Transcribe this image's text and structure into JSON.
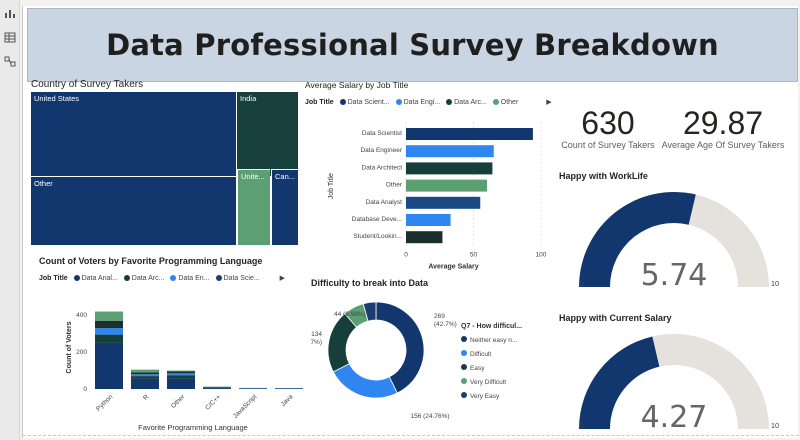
{
  "dashboard_title": "Data Professional Survey Breakdown",
  "colors": {
    "dark_blue": "#12376e",
    "teal_dark": "#163e3b",
    "green": "#5c9f72",
    "blue": "#2f86f0",
    "navy": "#1a3d73",
    "dark": "#1a2e2b",
    "gauge_bg": "#e5e1dc"
  },
  "treemap": {
    "title": "Country of Survey Takers",
    "cells": [
      {
        "label": "United States",
        "color": "#12376e"
      },
      {
        "label": "India",
        "color": "#173f3c"
      },
      {
        "label": "Other",
        "color": "#12376e"
      },
      {
        "label": "Unite...",
        "color": "#5c9f72"
      },
      {
        "label": "Can...",
        "color": "#12376e"
      }
    ]
  },
  "kpis": {
    "survey_takers": {
      "value": "630",
      "label": "Count of Survey Takers"
    },
    "avg_age": {
      "value": "29.87",
      "label": "Average Age Of Survey Takers"
    }
  },
  "gauges": [
    {
      "title": "Happy with WorkLife",
      "value_text": "5.74",
      "min_label": "0",
      "max_label": "10"
    },
    {
      "title": "Happy with Current Salary",
      "value_text": "4.27",
      "min_label": "0",
      "max_label": "10"
    }
  ],
  "legends": {
    "salary_chart": {
      "label": "Job Title",
      "items": [
        {
          "name": "Data Scient...",
          "color": "#12376e"
        },
        {
          "name": "Data Engi...",
          "color": "#2f86f0"
        },
        {
          "name": "Data Arc...",
          "color": "#163e3b"
        },
        {
          "name": "Other",
          "color": "#5c9f72"
        }
      ],
      "more": "▶"
    },
    "lang_chart": {
      "label": "Job Title",
      "items": [
        {
          "name": "Data Anal...",
          "color": "#12376e"
        },
        {
          "name": "Data Arc...",
          "color": "#163e3b"
        },
        {
          "name": "Data En...",
          "color": "#2f86f0"
        },
        {
          "name": "Data Scie...",
          "color": "#1a3d73"
        }
      ],
      "more": "▶"
    }
  },
  "chart_data": [
    {
      "type": "bar",
      "orientation": "horizontal",
      "title": "Average Salary by Job Title",
      "categories": [
        "Data Scientist",
        "Data Engineer",
        "Data Architect",
        "Other",
        "Data Analyst",
        "Database Deve...",
        "Student/Lookin..."
      ],
      "values": [
        94,
        65,
        64,
        60,
        55,
        33,
        27
      ],
      "colors": [
        "#12376e",
        "#2f86f0",
        "#163e3b",
        "#5c9f72",
        "#1a4a85",
        "#2f86f0",
        "#1a2e2b"
      ],
      "xlabel": "Average Salary",
      "ylabel": "Job Title",
      "xlim": [
        0,
        100
      ],
      "xticks": [
        "0",
        "50",
        "100"
      ]
    },
    {
      "type": "bar",
      "stacked": true,
      "title": "Count of Voters by Favorite Programming Language",
      "categories": [
        "Python",
        "R",
        "Other",
        "C/C++",
        "JavaScript",
        "Java"
      ],
      "series": [
        {
          "name": "Data Anal...",
          "color": "#12376e",
          "values": [
            250,
            55,
            55,
            5,
            3,
            3
          ]
        },
        {
          "name": "Data Arc...",
          "color": "#163e3b",
          "values": [
            45,
            15,
            20,
            3,
            1,
            1
          ]
        },
        {
          "name": "Data En...",
          "color": "#2f86f0",
          "values": [
            35,
            10,
            10,
            2,
            1,
            1
          ]
        },
        {
          "name": "Data Scie...",
          "color": "#1a2e2b",
          "values": [
            40,
            10,
            10,
            2,
            0,
            0
          ]
        },
        {
          "name": "Other",
          "color": "#5c9f72",
          "values": [
            50,
            15,
            5,
            1,
            1,
            0
          ]
        }
      ],
      "xlabel": "Favorite Programming Language",
      "ylabel": "Count of Voters",
      "ylim": [
        0,
        450
      ],
      "yticks": [
        "0",
        "200",
        "400"
      ]
    },
    {
      "type": "pie",
      "donut": true,
      "title": "Difficulty to break into Data",
      "legend_title": "Q7 - How difficul...",
      "slices": [
        {
          "name": "Neither easy n...",
          "value": 269,
          "label": "269\n(42.7%)",
          "color": "#12376e"
        },
        {
          "name": "Difficult",
          "value": 156,
          "label": "156 (24.76%)",
          "color": "#2f86f0"
        },
        {
          "name": "Easy",
          "value": 134,
          "label": "134\n(21.27%)",
          "color": "#163e3b"
        },
        {
          "name": "Very Difficult",
          "value": 44,
          "label": "44 (6.98%)",
          "color": "#5c9f72"
        },
        {
          "name": "Very Easy",
          "value": 27,
          "label": "",
          "color": "#1a3d73"
        }
      ]
    }
  ],
  "gauge_values": [
    5.74,
    4.27
  ],
  "gauge_max": 10
}
